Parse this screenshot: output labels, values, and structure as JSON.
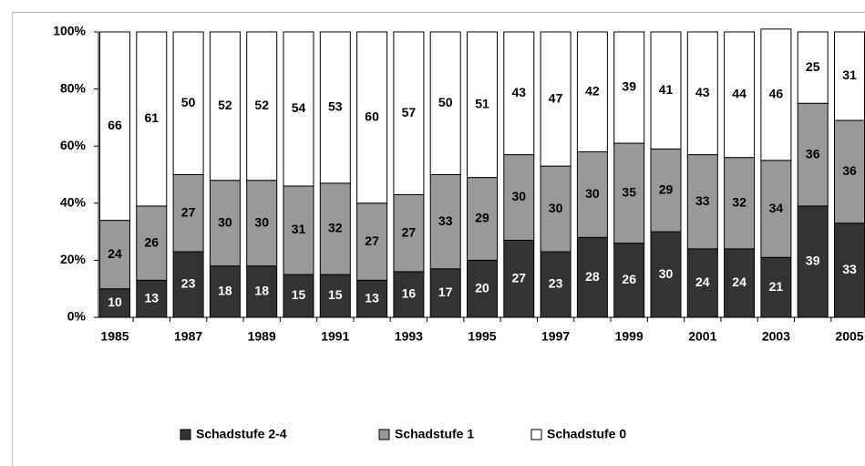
{
  "chart_data": {
    "type": "stacked_bar",
    "categories": [
      "1985",
      null,
      "1987",
      null,
      "1989",
      null,
      "1991",
      null,
      "1993",
      null,
      "1995",
      null,
      "1997",
      null,
      "1999",
      null,
      "2001",
      null,
      "2003",
      null,
      "2005"
    ],
    "series": [
      {
        "name": "Schadstufe 2-4",
        "color": "#333333",
        "values": [
          10,
          13,
          23,
          18,
          18,
          15,
          15,
          13,
          16,
          17,
          20,
          27,
          23,
          28,
          26,
          30,
          24,
          24,
          21,
          39,
          33
        ]
      },
      {
        "name": "Schadstufe 1",
        "color": "#999999",
        "values": [
          24,
          26,
          27,
          30,
          30,
          31,
          32,
          27,
          27,
          33,
          29,
          30,
          30,
          30,
          35,
          29,
          33,
          32,
          34,
          36,
          36
        ]
      },
      {
        "name": "Schadstufe 0",
        "color": "#ffffff",
        "values": [
          66,
          61,
          50,
          52,
          52,
          54,
          53,
          60,
          57,
          50,
          51,
          43,
          47,
          42,
          39,
          41,
          43,
          44,
          46,
          25,
          31
        ]
      }
    ],
    "ylim": [
      0,
      100
    ],
    "yticks": [
      {
        "value": 0,
        "label": "0%"
      },
      {
        "value": 20,
        "label": "20%"
      },
      {
        "value": 40,
        "label": "40%"
      },
      {
        "value": 60,
        "label": "60%"
      },
      {
        "value": 80,
        "label": "80%"
      },
      {
        "value": 100,
        "label": "100%"
      }
    ],
    "legend": "bottom"
  }
}
